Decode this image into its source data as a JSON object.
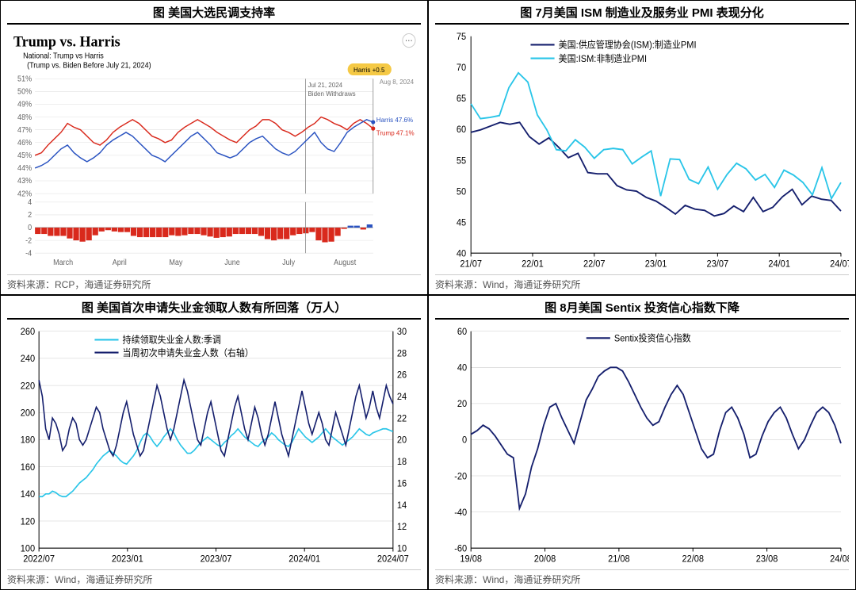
{
  "panels": {
    "poll": {
      "title": "图 美国大选民调支持率",
      "source": "资料来源：RCP，海通证券研究所",
      "header": "Trump vs. Harris",
      "sub1": "National: Trump vs Harris",
      "sub2": "(Trump vs. Biden Before July 21, 2024)",
      "date_label": "Aug 8, 2024",
      "badge": "Harris +0.5",
      "event_label1": "Jul 21, 2024",
      "event_label2": "Biden Withdraws",
      "harris_label": "Harris 47.6%",
      "trump_label": "Trump 47.1%",
      "colors": {
        "trump": "#d9291c",
        "harris": "#2a53c1",
        "grid": "#e0e0e0",
        "bg": "#ffffff",
        "badge_bg": "#f5c945"
      },
      "y_ticks": [
        "42%",
        "43%",
        "44%",
        "45%",
        "46%",
        "47%",
        "48%",
        "49%",
        "50%",
        "51%"
      ],
      "x_ticks": [
        "March",
        "April",
        "May",
        "June",
        "July",
        "August"
      ],
      "spread_ticks": [
        "-4",
        "-2",
        "0",
        "2",
        "4"
      ],
      "trump_series": [
        45.0,
        45.2,
        45.8,
        46.3,
        46.8,
        47.5,
        47.2,
        47.0,
        46.5,
        46.0,
        45.8,
        46.2,
        46.8,
        47.2,
        47.5,
        47.8,
        47.5,
        47.0,
        46.5,
        46.3,
        46.0,
        46.2,
        46.8,
        47.2,
        47.5,
        47.8,
        47.5,
        47.2,
        46.8,
        46.5,
        46.2,
        46.0,
        46.5,
        47.0,
        47.3,
        47.8,
        47.8,
        47.5,
        47.0,
        46.8,
        46.5,
        46.8,
        47.2,
        47.5,
        48.0,
        47.8,
        47.5,
        47.3,
        47.0,
        47.5,
        47.8,
        47.5,
        47.1
      ],
      "harris_series": [
        44.0,
        44.2,
        44.5,
        45.0,
        45.5,
        45.8,
        45.2,
        44.8,
        44.5,
        44.8,
        45.2,
        45.8,
        46.2,
        46.5,
        46.8,
        46.5,
        46.0,
        45.5,
        45.0,
        44.8,
        44.5,
        45.0,
        45.5,
        46.0,
        46.5,
        46.8,
        46.3,
        45.8,
        45.2,
        45.0,
        44.8,
        45.0,
        45.5,
        46.0,
        46.3,
        46.5,
        46.0,
        45.5,
        45.2,
        45.0,
        45.3,
        45.8,
        46.3,
        46.8,
        46.0,
        45.5,
        45.3,
        46.0,
        46.8,
        47.2,
        47.5,
        47.8,
        47.6
      ],
      "spread_series": [
        -1.0,
        -1.0,
        -1.3,
        -1.3,
        -1.3,
        -1.7,
        -2.0,
        -2.2,
        -2.0,
        -1.2,
        -0.6,
        -0.4,
        -0.6,
        -0.7,
        -0.7,
        -1.3,
        -1.5,
        -1.5,
        -1.5,
        -1.5,
        -1.5,
        -1.2,
        -1.3,
        -1.2,
        -1.0,
        -1.0,
        -1.2,
        -1.4,
        -1.6,
        -1.5,
        -1.4,
        -1.0,
        -1.0,
        -1.0,
        -1.0,
        -1.3,
        -1.8,
        -2.0,
        -1.8,
        -1.8,
        -1.2,
        -1.0,
        -0.9,
        -0.7,
        -2.0,
        -2.3,
        -2.2,
        -1.3,
        -0.2,
        0.3,
        0.3,
        -0.3,
        0.5
      ]
    },
    "pmi": {
      "title": "图 7月美国 ISM 制造业及服务业 PMI 表现分化",
      "source": "资料来源：Wind，海通证券研究所",
      "legend1": "美国:供应管理协会(ISM):制造业PMI",
      "legend2": "美国:ISM:非制造业PMI",
      "colors": {
        "mfg": "#151f6d",
        "svc": "#29c5e8",
        "grid": "#cccccc"
      },
      "y_ticks": [
        40,
        45,
        50,
        55,
        60,
        65,
        70,
        75
      ],
      "x_ticks": [
        "21/07",
        "22/01",
        "22/07",
        "23/01",
        "23/07",
        "24/01",
        "24/07"
      ],
      "ylim": [
        40,
        75
      ],
      "mfg_series": [
        59.5,
        59.9,
        60.5,
        61.1,
        60.8,
        61.1,
        58.8,
        57.6,
        58.6,
        57.1,
        55.4,
        56.1,
        53.0,
        52.8,
        52.8,
        50.9,
        50.2,
        50.0,
        49.0,
        48.4,
        47.4,
        46.3,
        47.7,
        47.1,
        46.9,
        46.0,
        46.4,
        47.6,
        46.7,
        49.0,
        46.7,
        47.4,
        49.1,
        50.3,
        47.8,
        49.2,
        48.7,
        48.5,
        46.8
      ],
      "svc_series": [
        64.1,
        61.7,
        61.9,
        62.2,
        66.7,
        69.1,
        67.6,
        62.3,
        59.9,
        56.7,
        56.5,
        58.3,
        57.1,
        55.3,
        56.7,
        56.9,
        56.7,
        54.4,
        55.5,
        56.5,
        49.2,
        55.2,
        55.1,
        51.9,
        51.2,
        53.9,
        50.3,
        52.7,
        54.5,
        53.6,
        51.8,
        52.7,
        50.6,
        53.4,
        52.6,
        51.4,
        49.4,
        53.8,
        48.8,
        51.4
      ]
    },
    "jobless": {
      "title": "图 美国首次申请失业金领取人数有所回落（万人）",
      "source": "资料来源：Wind，海通证券研究所",
      "legend1": "持续领取失业金人数:季调",
      "legend2": "当周初次申请失业金人数（右轴）",
      "colors": {
        "cont": "#29c5e8",
        "init": "#151f6d",
        "grid": "#cccccc"
      },
      "y_left_ticks": [
        100,
        120,
        140,
        160,
        180,
        200,
        220,
        240,
        260
      ],
      "y_right_ticks": [
        10,
        12,
        14,
        16,
        18,
        20,
        22,
        24,
        26,
        28,
        30
      ],
      "x_ticks": [
        "2022/07",
        "2023/01",
        "2023/07",
        "2024/01",
        "2024/07"
      ],
      "ylim_left": [
        100,
        260
      ],
      "ylim_right": [
        10,
        30
      ],
      "cont_series": [
        138,
        138,
        140,
        140,
        142,
        141,
        139,
        138,
        138,
        140,
        142,
        145,
        148,
        150,
        152,
        155,
        158,
        162,
        165,
        168,
        170,
        172,
        170,
        168,
        165,
        163,
        162,
        165,
        168,
        172,
        178,
        183,
        185,
        182,
        178,
        175,
        178,
        182,
        185,
        188,
        185,
        180,
        176,
        173,
        170,
        170,
        172,
        175,
        178,
        180,
        182,
        180,
        178,
        176,
        175,
        178,
        180,
        183,
        185,
        188,
        185,
        182,
        180,
        178,
        176,
        175,
        178,
        180,
        182,
        185,
        183,
        180,
        178,
        176,
        175,
        178,
        183,
        188,
        185,
        182,
        180,
        178,
        180,
        182,
        185,
        188,
        185,
        182,
        180,
        178,
        176,
        178,
        180,
        182,
        185,
        188,
        186,
        184,
        183,
        185,
        186,
        187,
        188,
        188,
        187,
        186
      ],
      "init_series": [
        25.5,
        24.0,
        21.0,
        20.0,
        22.0,
        21.5,
        20.5,
        19.0,
        19.5,
        21.0,
        22.0,
        21.5,
        20.0,
        19.5,
        20.0,
        21.0,
        22.0,
        23.0,
        22.5,
        21.0,
        20.0,
        19.0,
        18.5,
        19.5,
        21.0,
        22.5,
        23.5,
        22.0,
        20.5,
        19.5,
        18.5,
        19.0,
        20.5,
        22.0,
        23.5,
        25.0,
        24.0,
        22.5,
        21.0,
        20.0,
        21.0,
        22.5,
        24.0,
        25.5,
        24.5,
        23.0,
        21.5,
        20.0,
        19.5,
        21.0,
        22.5,
        23.5,
        22.0,
        20.5,
        19.0,
        18.5,
        20.0,
        21.5,
        23.0,
        24.0,
        22.5,
        21.0,
        20.0,
        21.5,
        23.0,
        22.0,
        20.5,
        19.5,
        20.5,
        22.0,
        23.5,
        22.0,
        20.5,
        19.5,
        18.5,
        20.0,
        21.5,
        23.0,
        24.5,
        23.0,
        21.5,
        20.5,
        21.5,
        22.5,
        21.5,
        20.0,
        19.5,
        21.0,
        22.5,
        21.5,
        20.5,
        19.5,
        21.0,
        22.5,
        24.0,
        25.0,
        23.5,
        22.0,
        23.0,
        24.5,
        23.0,
        22.0,
        23.5,
        25.0,
        24.0,
        23.3
      ]
    },
    "sentix": {
      "title": "图 8月美国 Sentix 投资信心指数下降",
      "source": "资料来源：Wind，海通证券研究所",
      "legend": "Sentix投资信心指数",
      "colors": {
        "line": "#151f6d",
        "grid": "#cccccc"
      },
      "y_ticks": [
        -60,
        -40,
        -20,
        0,
        20,
        40,
        60
      ],
      "x_ticks": [
        "19/08",
        "20/08",
        "21/08",
        "22/08",
        "23/08",
        "24/08"
      ],
      "ylim": [
        -60,
        60
      ],
      "series": [
        3,
        5,
        8,
        6,
        2,
        -3,
        -8,
        -10,
        -38,
        -30,
        -15,
        -5,
        8,
        18,
        20,
        12,
        5,
        -2,
        10,
        22,
        28,
        35,
        38,
        40,
        40,
        38,
        32,
        25,
        18,
        12,
        8,
        10,
        18,
        25,
        30,
        25,
        15,
        5,
        -5,
        -10,
        -8,
        5,
        15,
        18,
        12,
        3,
        -10,
        -8,
        2,
        10,
        15,
        18,
        12,
        3,
        -5,
        0,
        8,
        15,
        18,
        15,
        8,
        -2
      ]
    }
  }
}
